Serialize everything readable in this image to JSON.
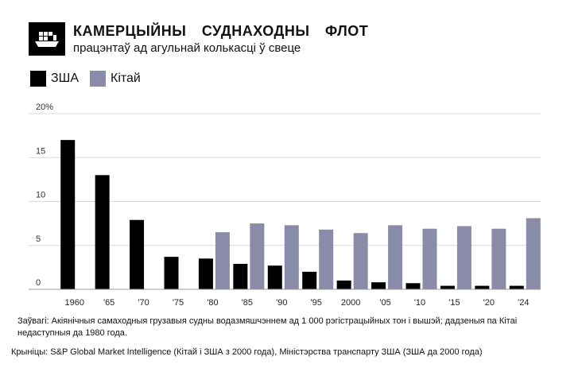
{
  "header": {
    "icon": "ship-icon",
    "title": "КАМЕРЦЫЙНЫ СУДНАХОДНЫ ФЛОТ",
    "subtitle": "працэнтаў ад агульнай колькасці ў свеце"
  },
  "legend": [
    {
      "label": "ЗША",
      "color": "#000000"
    },
    {
      "label": "Кітай",
      "color": "#8a8ba8"
    }
  ],
  "chart_data": {
    "type": "bar",
    "categories": [
      "1960",
      "'65",
      "'70",
      "'75",
      "'80",
      "'85",
      "'90",
      "'95",
      "2000",
      "'05",
      "'10",
      "'15",
      "'20",
      "'24"
    ],
    "series": [
      {
        "name": "ЗША",
        "color": "#000000",
        "values": [
          17,
          13,
          7.9,
          3.7,
          3.5,
          2.9,
          2.7,
          2.0,
          1.0,
          0.8,
          0.7,
          0.4,
          0.4,
          0.4
        ]
      },
      {
        "name": "Кітай",
        "color": "#8a8ba8",
        "values": [
          null,
          null,
          null,
          null,
          6.5,
          7.5,
          7.3,
          6.8,
          6.4,
          7.3,
          6.9,
          7.2,
          6.9,
          8.1
        ]
      }
    ],
    "yticks": [
      "0",
      "5",
      "10",
      "15",
      "20%"
    ],
    "ylim": [
      0,
      20
    ],
    "grid": true
  },
  "footnote": {
    "note": "Заўвагі: Акіянічныя самаходныя грузавыя судны водазмяшчэннем ад 1 000 рэгістрацыйных тон і вышэй; дадзеныя па Кітаі недаступныя да 1980 года.",
    "source": "Крыніцы: S&P Global Market Intelligence (Кітай і ЗША з 2000 года), Міністэрства транспарту ЗША (ЗША да 2000 года)"
  }
}
